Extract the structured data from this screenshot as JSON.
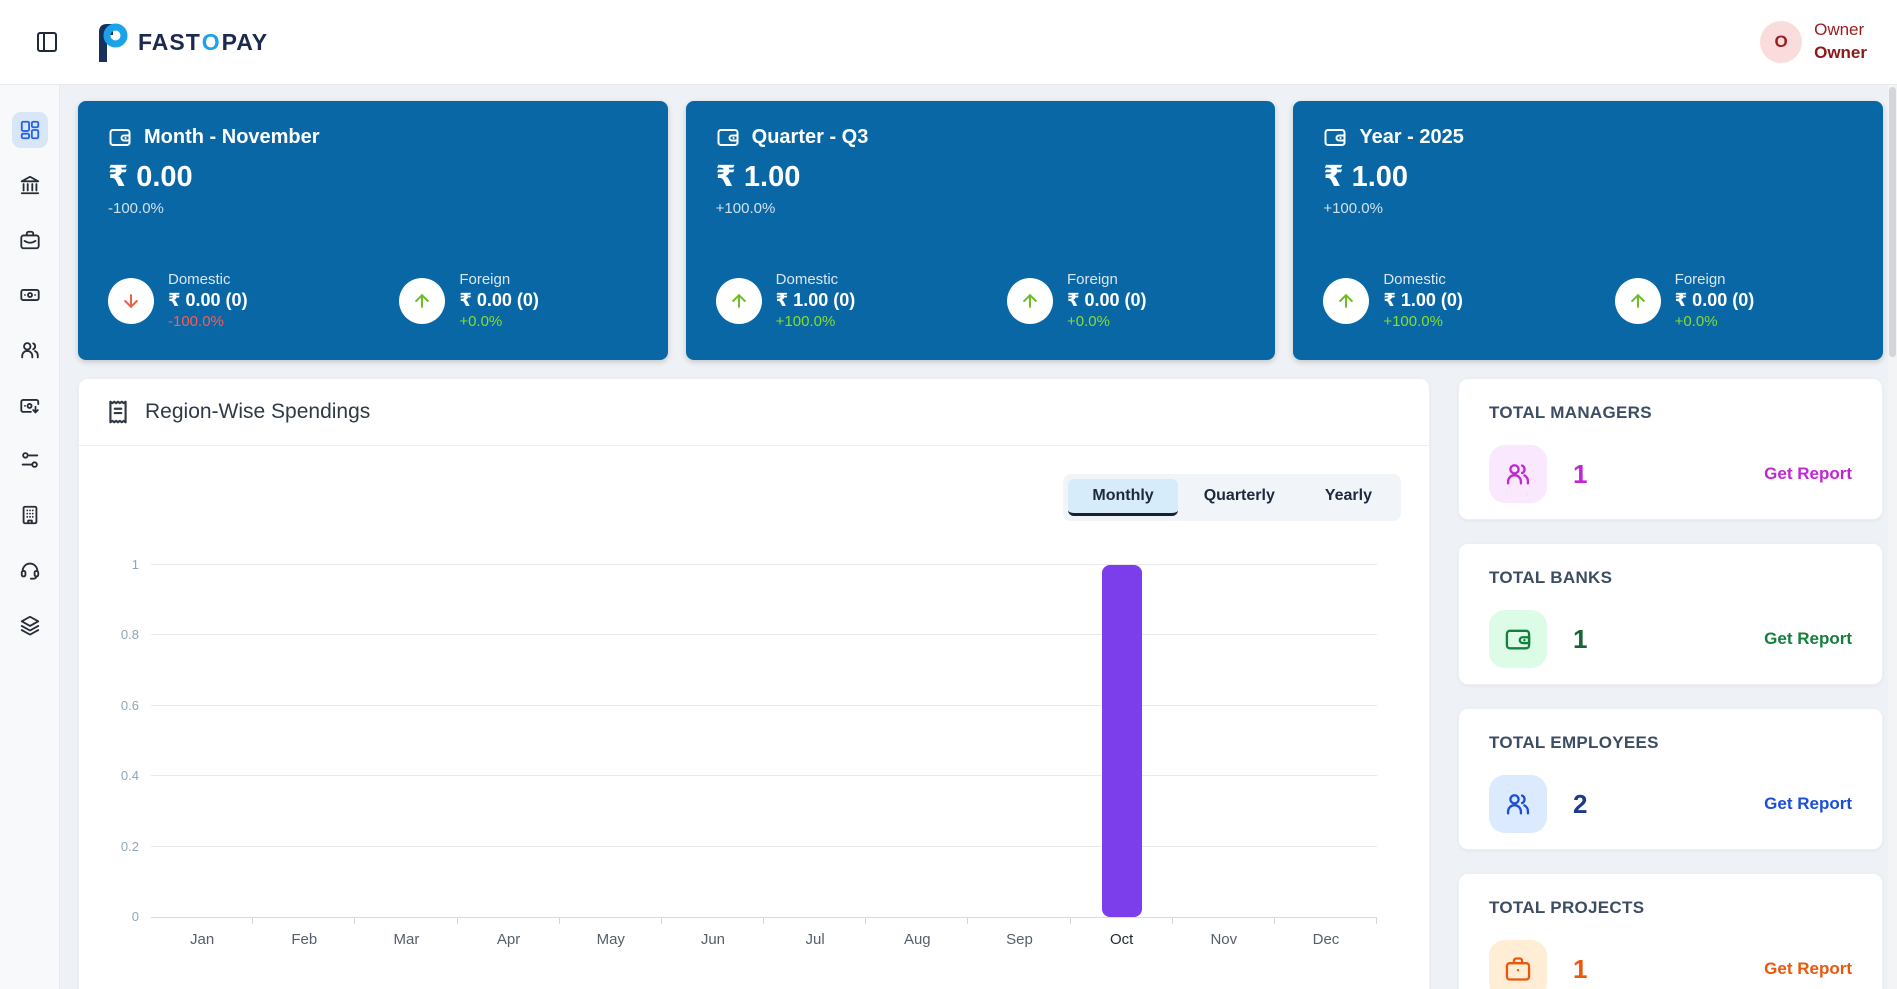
{
  "header": {
    "brand": {
      "part1": "FAST",
      "part2": "O",
      "part3": "PAY"
    },
    "user": {
      "initial": "O",
      "name": "Owner",
      "role": "Owner"
    }
  },
  "sidebar": {
    "items": [
      {
        "icon": "layout-dashboard-icon",
        "active": true
      },
      {
        "icon": "bank-icon",
        "active": false
      },
      {
        "icon": "briefcase-icon",
        "active": false
      },
      {
        "icon": "banknote-icon",
        "active": false
      },
      {
        "icon": "users-icon",
        "active": false
      },
      {
        "icon": "banknote-arrow-down-icon",
        "active": false
      },
      {
        "icon": "sliders-icon",
        "active": false
      },
      {
        "icon": "building-icon",
        "active": false
      },
      {
        "icon": "headset-icon",
        "active": false
      },
      {
        "icon": "layers-icon",
        "active": false
      }
    ]
  },
  "summary_cards": [
    {
      "title": "Month - November",
      "value": "₹ 0.00",
      "change": "-100.0%",
      "domestic": {
        "label": "Domestic",
        "value": "₹ 0.00 (0)",
        "change": "-100.0%",
        "direction": "down"
      },
      "foreign": {
        "label": "Foreign",
        "value": "₹ 0.00 (0)",
        "change": "+0.0%",
        "direction": "up"
      }
    },
    {
      "title": "Quarter - Q3",
      "value": "₹ 1.00",
      "change": "+100.0%",
      "domestic": {
        "label": "Domestic",
        "value": "₹ 1.00 (0)",
        "change": "+100.0%",
        "direction": "up"
      },
      "foreign": {
        "label": "Foreign",
        "value": "₹ 0.00 (0)",
        "change": "+0.0%",
        "direction": "up"
      }
    },
    {
      "title": "Year - 2025",
      "value": "₹ 1.00",
      "change": "+100.0%",
      "domestic": {
        "label": "Domestic",
        "value": "₹ 1.00 (0)",
        "change": "+100.0%",
        "direction": "up"
      },
      "foreign": {
        "label": "Foreign",
        "value": "₹ 0.00 (0)",
        "change": "+0.0%",
        "direction": "up"
      }
    }
  ],
  "chart_card": {
    "title": "Region-Wise Spendings",
    "tabs": [
      {
        "label": "Monthly",
        "active": true
      },
      {
        "label": "Quarterly",
        "active": false
      },
      {
        "label": "Yearly",
        "active": false
      }
    ]
  },
  "chart_data": {
    "type": "bar",
    "title": "Region-Wise Spendings",
    "categories": [
      "Jan",
      "Feb",
      "Mar",
      "Apr",
      "May",
      "Jun",
      "Jul",
      "Aug",
      "Sep",
      "Oct",
      "Nov",
      "Dec"
    ],
    "values": [
      0,
      0,
      0,
      0,
      0,
      0,
      0,
      0,
      0,
      1,
      0,
      0
    ],
    "xlabel": "",
    "ylabel": "",
    "ylim": [
      0,
      1
    ],
    "yticks": [
      0,
      0.2,
      0.4,
      0.6,
      0.8,
      1
    ],
    "grid": true,
    "legend_position": "none",
    "bar_color": "#7c3eeb",
    "highlight_category": "Oct"
  },
  "stat_cards": [
    {
      "title": "TOTAL MANAGERS",
      "value": "1",
      "link": "Get Report",
      "accent": "#c026d3",
      "icon_bg": "#fae8ff",
      "value_color": "#c026d3",
      "icon": "users-icon"
    },
    {
      "title": "TOTAL BANKS",
      "value": "1",
      "link": "Get Report",
      "accent": "#15803d",
      "icon_bg": "#dcfce7",
      "value_color": "#166534",
      "icon": "wallet-icon"
    },
    {
      "title": "TOTAL EMPLOYEES",
      "value": "2",
      "link": "Get Report",
      "accent": "#1d4ed8",
      "icon_bg": "#dbeafe",
      "value_color": "#1e3a8a",
      "icon": "users-icon"
    },
    {
      "title": "TOTAL PROJECTS",
      "value": "1",
      "link": "Get Report",
      "accent": "#ea580c",
      "icon_bg": "#ffedd5",
      "value_color": "#ea580c",
      "icon": "briefcase-icon"
    }
  ],
  "colors": {
    "summary_card_bg": "#0a67a6",
    "arrow_up": "#6cbf22",
    "arrow_down": "#e8604c",
    "positive_text": "#86de26",
    "negative_text": "#fc5c51",
    "bar_color": "#7c3eeb",
    "brand_navy": "#1b2a4e",
    "brand_blue": "#1ba2e8"
  }
}
